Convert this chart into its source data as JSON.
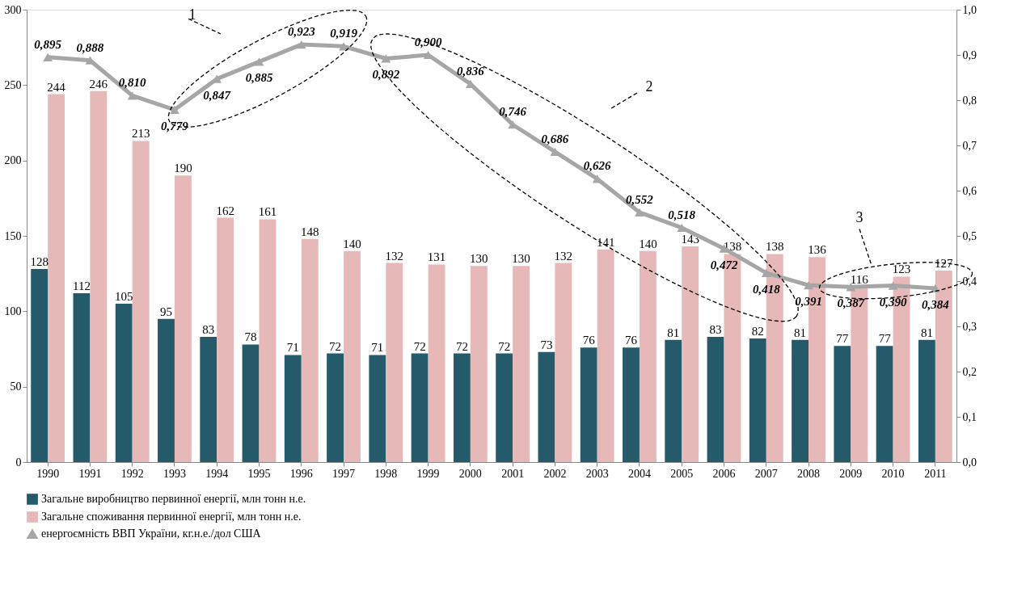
{
  "chart_data": {
    "type": "bar",
    "categories": [
      "1990",
      "1991",
      "1992",
      "1993",
      "1994",
      "1995",
      "1996",
      "1997",
      "1998",
      "1999",
      "2000",
      "2001",
      "2002",
      "2003",
      "2004",
      "2005",
      "2006",
      "2007",
      "2008",
      "2009",
      "2010",
      "2011"
    ],
    "series": [
      {
        "name": "Загальне виробництво первинної енергії, млн тонн н.е.",
        "color": "#245a69",
        "values": [
          128,
          112,
          105,
          95,
          83,
          78,
          71,
          72,
          71,
          72,
          72,
          72,
          73,
          76,
          76,
          81,
          83,
          82,
          81,
          77,
          77,
          81
        ]
      },
      {
        "name": "Загальне споживання первинної енергії, млн тонн н.е.",
        "color": "#e6b9b8",
        "values": [
          244,
          246,
          213,
          190,
          162,
          161,
          148,
          140,
          132,
          131,
          130,
          130,
          132,
          141,
          140,
          143,
          138,
          138,
          136,
          116,
          123,
          127
        ]
      },
      {
        "name": "енергоємність ВВП України, кг.н.е./дол США",
        "color": "#a6a6a6",
        "type": "line",
        "axis": "y2",
        "marker": "triangle",
        "line_style": "solid",
        "values": [
          0.895,
          0.888,
          0.81,
          0.779,
          0.847,
          0.885,
          0.923,
          0.919,
          0.892,
          0.9,
          0.836,
          0.746,
          0.686,
          0.626,
          0.552,
          0.518,
          0.472,
          0.418,
          0.391,
          0.387,
          0.39,
          0.384
        ],
        "value_labels": [
          "0,895",
          "0,888",
          "0,810",
          "0,779",
          "0,847",
          "0,885",
          "0,923",
          "0,919",
          "0,892",
          "0,900",
          "0,836",
          "0,746",
          "0,686",
          "0,626",
          "0,552",
          "0,518",
          "0,472",
          "0,418",
          "0,391",
          "0,387",
          "0,390",
          "0,384"
        ]
      }
    ],
    "data_labels": true,
    "ylim": [
      0,
      300
    ],
    "yticks": [
      0,
      50,
      100,
      150,
      200,
      250,
      300
    ],
    "y2lim": [
      0,
      1
    ],
    "y2ticks": [
      {
        "value": 0,
        "label": "0,0"
      },
      {
        "value": 0.1,
        "label": "0,1"
      },
      {
        "value": 0.2,
        "label": "0,2"
      },
      {
        "value": 0.3,
        "label": "0,3"
      },
      {
        "value": 0.4,
        "label": "0,4"
      },
      {
        "value": 0.5,
        "label": "0,5"
      },
      {
        "value": 0.6,
        "label": "0,6"
      },
      {
        "value": 0.7,
        "label": "0,7"
      },
      {
        "value": 0.8,
        "label": "0,8"
      },
      {
        "value": 0.9,
        "label": "0,9"
      },
      {
        "value": 1,
        "label": "1,0"
      }
    ],
    "annotations": [
      "1",
      "2",
      "3"
    ],
    "grid": false,
    "legend": "bottom"
  }
}
